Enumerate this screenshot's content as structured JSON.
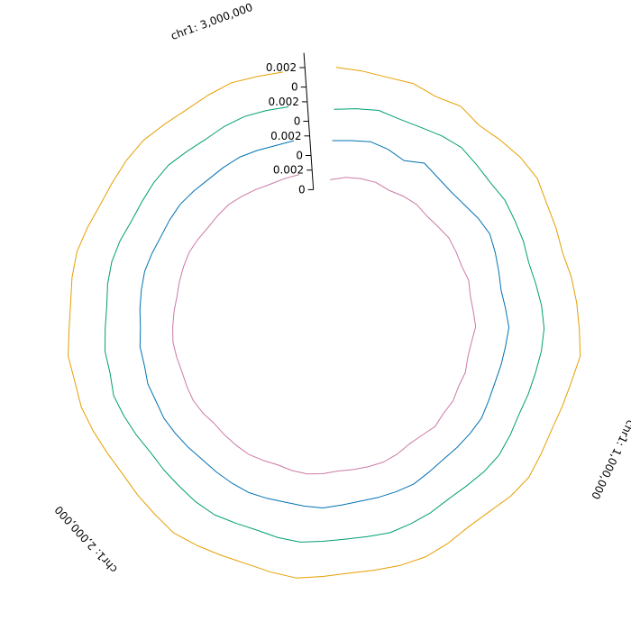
{
  "chart_data": {
    "type": "line",
    "layout": "circular",
    "chromosome": "chr1",
    "x_range": [
      0,
      3100000
    ],
    "position_labels": [
      {
        "value": 1000000,
        "label": "chr1: 1,000,000"
      },
      {
        "value": 2000000,
        "label": "chr1: 2,000,000"
      },
      {
        "value": 3000000,
        "label": "chr1: 3,000,000"
      }
    ],
    "y_range": [
      0,
      0.0035
    ],
    "y_ticks": [
      {
        "value": 0,
        "label": "0"
      },
      {
        "value": 0.002,
        "label": "0.002"
      }
    ],
    "grid": false,
    "legend": "none",
    "series": [
      {
        "color": "#E69F00",
        "values": [
          0.002,
          0.0019,
          0.0018,
          0.002,
          0.0017,
          0.0021,
          0.0016,
          0.0019,
          0.0022,
          0.0023,
          0.0018,
          0.0016,
          0.0014,
          0.0017,
          0.0019,
          0.0021,
          0.0024,
          0.002,
          0.0018,
          0.0017,
          0.0019,
          0.0022,
          0.002,
          0.0016,
          0.0015,
          0.0018,
          0.002,
          0.0019,
          0.0017,
          0.0016,
          0.0018,
          0.0021,
          0.0019,
          0.0017,
          0.0018,
          0.002,
          0.0022,
          0.0019,
          0.0017,
          0.0015,
          0.0016,
          0.0018,
          0.002,
          0.0019,
          0.0021,
          0.0018,
          0.0017,
          0.0019,
          0.002,
          0.0018,
          0.0016,
          0.0017,
          0.0019,
          0.002,
          0.0018,
          0.0017,
          0.0019,
          0.0021,
          0.0019,
          0.0018
        ]
      },
      {
        "color": "#009E73",
        "values": [
          0.0012,
          0.0015,
          0.0018,
          0.0016,
          0.0017,
          0.002,
          0.0022,
          0.0019,
          0.0017,
          0.0018,
          0.0016,
          0.0015,
          0.0013,
          0.0015,
          0.0018,
          0.002,
          0.0019,
          0.0017,
          0.0016,
          0.0015,
          0.0017,
          0.0019,
          0.0018,
          0.0016,
          0.0015,
          0.0017,
          0.0018,
          0.0019,
          0.0017,
          0.0016,
          0.0017,
          0.0019,
          0.0018,
          0.0016,
          0.0017,
          0.0019,
          0.0018,
          0.0016,
          0.0015,
          0.0014,
          0.0016,
          0.0018,
          0.002,
          0.0017,
          0.0018,
          0.0016,
          0.0015,
          0.0017,
          0.0018,
          0.0017,
          0.0015,
          0.0016,
          0.0018,
          0.0019,
          0.0017,
          0.0016,
          0.0018,
          0.0019,
          0.0018,
          0.0017
        ]
      },
      {
        "color": "#0072B2",
        "values": [
          0.0015,
          0.0017,
          0.002,
          0.0018,
          0.0014,
          0.0022,
          0.0018,
          0.0016,
          0.0017,
          0.002,
          0.0022,
          0.0019,
          0.0016,
          0.0014,
          0.0016,
          0.0019,
          0.0017,
          0.0016,
          0.0015,
          0.0016,
          0.0018,
          0.0017,
          0.0016,
          0.0015,
          0.0016,
          0.0018,
          0.0017,
          0.0016,
          0.0015,
          0.0016,
          0.0018,
          0.0017,
          0.0016,
          0.0017,
          0.0018,
          0.0017,
          0.0016,
          0.0015,
          0.0016,
          0.0017,
          0.0018,
          0.0017,
          0.0018,
          0.0016,
          0.0017,
          0.0015,
          0.0016,
          0.0017,
          0.0018,
          0.0017,
          0.0016,
          0.0017,
          0.0018,
          0.0017,
          0.0016,
          0.0017,
          0.0018,
          0.0017,
          0.0016,
          0.0017
        ]
      },
      {
        "color": "#CC79A7",
        "values": [
          0.001,
          0.0014,
          0.0016,
          0.0017,
          0.0015,
          0.0017,
          0.0018,
          0.0016,
          0.0017,
          0.0019,
          0.0018,
          0.0017,
          0.0019,
          0.0017,
          0.0018,
          0.002,
          0.0017,
          0.0016,
          0.0018,
          0.0017,
          0.0019,
          0.0018,
          0.002,
          0.0017,
          0.0016,
          0.0018,
          0.0019,
          0.0018,
          0.0017,
          0.0016,
          0.0018,
          0.0019,
          0.0018,
          0.0016,
          0.0017,
          0.0018,
          0.0017,
          0.0016,
          0.0015,
          0.0017,
          0.0018,
          0.0017,
          0.0016,
          0.0017,
          0.0018,
          0.0017,
          0.0016,
          0.0015,
          0.0016,
          0.0017,
          0.0018,
          0.0017,
          0.0016,
          0.0017,
          0.0018,
          0.0017,
          0.0016,
          0.0015,
          0.0016,
          0.0017
        ]
      }
    ]
  }
}
